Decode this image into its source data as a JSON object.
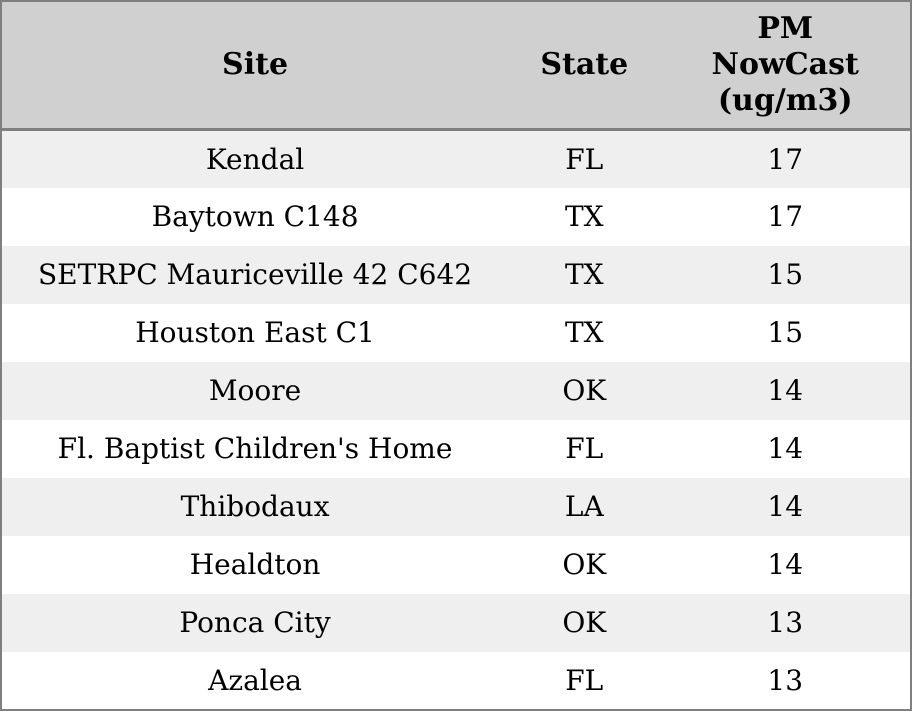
{
  "chart_data": {
    "type": "table",
    "columns": [
      "Site",
      "State",
      "PM NowCast (ug/m3)"
    ],
    "rows": [
      [
        "Kendal",
        "FL",
        17
      ],
      [
        "Baytown C148",
        "TX",
        17
      ],
      [
        "SETRPC Mauriceville 42 C642",
        "TX",
        15
      ],
      [
        "Houston East C1",
        "TX",
        15
      ],
      [
        "Moore",
        "OK",
        14
      ],
      [
        "Fl. Baptist Children's Home",
        "FL",
        14
      ],
      [
        "Thibodaux",
        "LA",
        14
      ],
      [
        "Healdton",
        "OK",
        14
      ],
      [
        "Ponca City",
        "OK",
        13
      ],
      [
        "Azalea",
        "FL",
        13
      ]
    ],
    "layout": {
      "header_position": "top",
      "row_striping": true,
      "grid": "outer-border-and-header-rule-only"
    }
  },
  "header": {
    "site": "Site",
    "state": "State",
    "pm": "PM\nNowCast\n(ug/m3)"
  },
  "colors": {
    "header_bg": "#d0d0d0",
    "row_odd_bg": "#efefef",
    "row_even_bg": "#ffffff",
    "border": "#7f7f7f",
    "text": "#000000"
  }
}
